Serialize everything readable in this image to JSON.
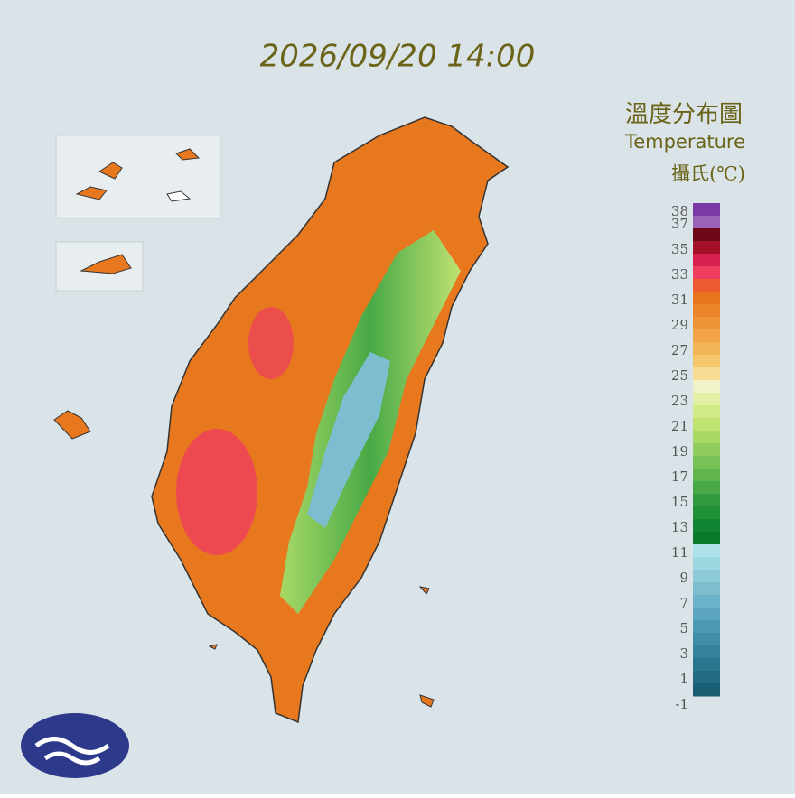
{
  "timestamp": "2026/09/20 14:00",
  "legend": {
    "title": "溫度分布圖",
    "subtitle": "Temperature",
    "unit": "攝氏(℃)",
    "labels": [
      38,
      37,
      35,
      33,
      31,
      29,
      27,
      25,
      23,
      21,
      19,
      17,
      15,
      13,
      11,
      9,
      7,
      5,
      3,
      1,
      -1
    ],
    "max": 38,
    "colors": [
      "#7a3aa6",
      "#9a62b8",
      "#6e0a18",
      "#a3102a",
      "#d8204e",
      "#ee3d5e",
      "#ee5a34",
      "#e8741e",
      "#ec842a",
      "#ef9438",
      "#f1a448",
      "#f3b458",
      "#f5c66c",
      "#f7dc94",
      "#f2f2c8",
      "#e2f0a4",
      "#d2ea86",
      "#c0e272",
      "#a8d966",
      "#90cd5e",
      "#78c156",
      "#60b54e",
      "#48a946",
      "#32993e",
      "#209036",
      "#108430",
      "#0a7a2a",
      "#aee2ea",
      "#9cd6e0",
      "#8ccad8",
      "#7cbed0",
      "#6cb2c8",
      "#5ca6bf",
      "#4c9ab2",
      "#408ea6",
      "#34829a",
      "#2a768e",
      "#226a82",
      "#1a5e74"
    ]
  }
}
